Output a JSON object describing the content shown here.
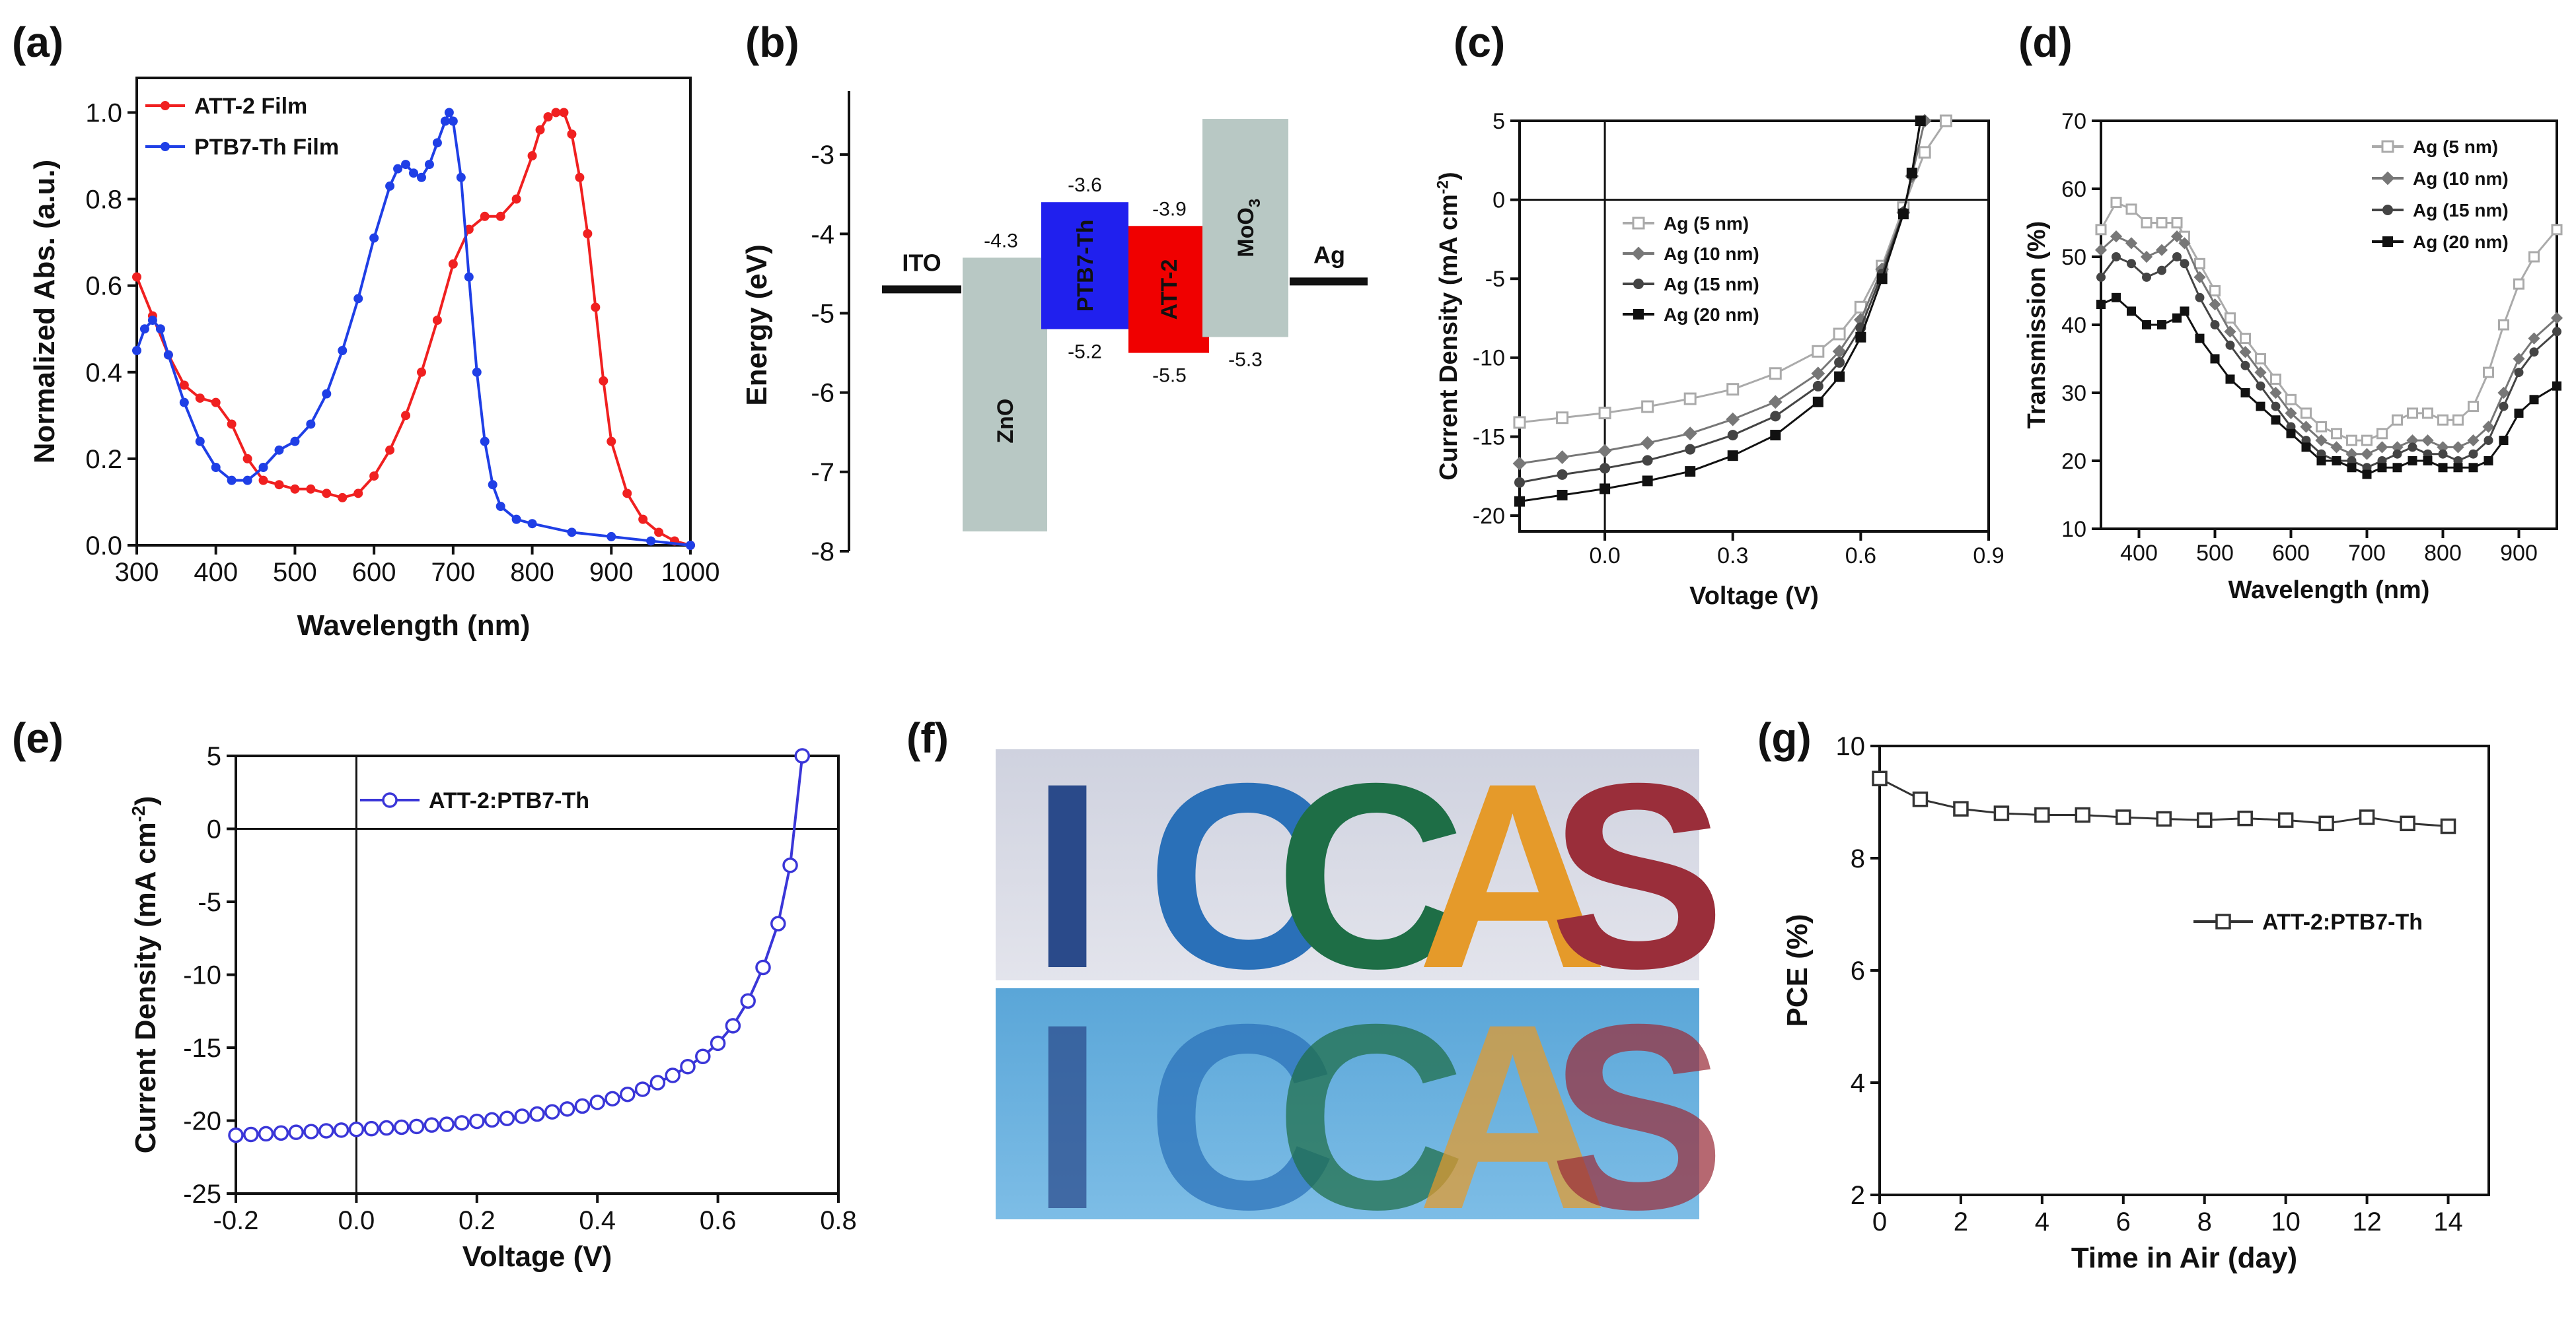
{
  "panel_labels": {
    "a": "(a)",
    "b": "(b)",
    "c": "(c)",
    "d": "(d)",
    "e": "(e)",
    "f": "(f)",
    "g": "(g)"
  },
  "colors": {
    "red": "#f02020",
    "blue": "#1f3fe6",
    "dark": "#1a1a1a",
    "grey": "#999999",
    "zno": "#b8c8c4",
    "moo3": "#b8c8c4",
    "ptb7": "#2020ee",
    "att2": "#f00000"
  },
  "panel_f": {
    "letters": [
      "I",
      "C",
      "C",
      "A",
      "S"
    ],
    "letter_colors": [
      "#2a4a8a",
      "#2a70b8",
      "#1e6e46",
      "#e59a2a",
      "#9a2e3a"
    ]
  },
  "chart_data": [
    {
      "id": "a",
      "type": "line",
      "title": "",
      "xlabel": "Wavelength (nm)",
      "ylabel": "Normalized Abs. (a.u.)",
      "xlim": [
        300,
        1000
      ],
      "ylim": [
        0,
        1.08
      ],
      "xticks": [
        300,
        400,
        500,
        600,
        700,
        800,
        900,
        1000
      ],
      "yticks": [
        0.0,
        0.2,
        0.4,
        0.6,
        0.8,
        1.0
      ],
      "ytick_labels": [
        "0.0",
        "0.2",
        "0.4",
        "0.6",
        "0.8",
        "1.0"
      ],
      "legend": "top-left",
      "series": [
        {
          "name": "ATT-2 Film",
          "color": "#f02020",
          "x": [
            300,
            320,
            340,
            360,
            380,
            400,
            420,
            440,
            460,
            480,
            500,
            520,
            540,
            560,
            580,
            600,
            620,
            640,
            660,
            680,
            700,
            720,
            740,
            760,
            780,
            800,
            810,
            820,
            830,
            840,
            850,
            860,
            870,
            880,
            890,
            900,
            920,
            940,
            960,
            980,
            1000
          ],
          "y": [
            0.62,
            0.53,
            0.44,
            0.37,
            0.34,
            0.33,
            0.28,
            0.2,
            0.15,
            0.14,
            0.13,
            0.13,
            0.12,
            0.11,
            0.12,
            0.16,
            0.22,
            0.3,
            0.4,
            0.52,
            0.65,
            0.73,
            0.76,
            0.76,
            0.8,
            0.9,
            0.96,
            0.99,
            1.0,
            1.0,
            0.95,
            0.85,
            0.72,
            0.55,
            0.38,
            0.24,
            0.12,
            0.06,
            0.03,
            0.01,
            0.0
          ]
        },
        {
          "name": "PTB7-Th Film",
          "color": "#1f3fe6",
          "x": [
            300,
            310,
            320,
            330,
            340,
            360,
            380,
            400,
            420,
            440,
            460,
            480,
            500,
            520,
            540,
            560,
            580,
            600,
            620,
            630,
            640,
            650,
            660,
            670,
            680,
            690,
            695,
            700,
            710,
            720,
            730,
            740,
            750,
            760,
            780,
            800,
            850,
            900,
            950,
            1000
          ],
          "y": [
            0.45,
            0.5,
            0.52,
            0.5,
            0.44,
            0.33,
            0.24,
            0.18,
            0.15,
            0.15,
            0.18,
            0.22,
            0.24,
            0.28,
            0.35,
            0.45,
            0.57,
            0.71,
            0.83,
            0.87,
            0.88,
            0.86,
            0.85,
            0.88,
            0.93,
            0.98,
            1.0,
            0.98,
            0.85,
            0.62,
            0.4,
            0.24,
            0.14,
            0.09,
            0.06,
            0.05,
            0.03,
            0.02,
            0.01,
            0.0
          ]
        }
      ]
    },
    {
      "id": "b",
      "type": "bar",
      "title": "",
      "ylabel": "Energy (eV)",
      "ylim": [
        -8,
        -2.3
      ],
      "yticks": [
        -3,
        -4,
        -5,
        -6,
        -7,
        -8
      ],
      "ytick_labels": [
        "-3",
        "-4",
        "-5",
        "-6",
        "-7",
        "-8"
      ],
      "levels": [
        {
          "name": "ITO",
          "value": -4.7,
          "label": "ITO"
        },
        {
          "name": "ZnO",
          "top": -4.3,
          "bottom": -7.75,
          "top_label": "-4.3",
          "label": "ZnO"
        },
        {
          "name": "PTB7-Th",
          "top": -3.6,
          "bottom": -5.2,
          "top_label": "-3.6",
          "bottom_label": "-5.2",
          "label": "PTB7-Th"
        },
        {
          "name": "ATT-2",
          "top": -3.9,
          "bottom": -5.5,
          "top_label": "-3.9",
          "bottom_label": "-5.5",
          "label": "ATT-2"
        },
        {
          "name": "MoO3",
          "top": -2.55,
          "bottom": -5.3,
          "bottom_label": "-5.3",
          "label": "MoO",
          "sub": "3"
        },
        {
          "name": "Ag",
          "value": -4.6,
          "label": "Ag"
        }
      ]
    },
    {
      "id": "c",
      "type": "line",
      "title": "",
      "xlabel": "Voltage (V)",
      "ylabel": "Current Density (mA cm",
      "ylabel_sup": "-2",
      "ylabel_end": ")",
      "xlim": [
        -0.2,
        0.9
      ],
      "ylim": [
        -21,
        5
      ],
      "xticks": [
        0.0,
        0.3,
        0.6,
        0.9
      ],
      "xtick_labels": [
        "0.0",
        "0.3",
        "0.6",
        "0.9"
      ],
      "yticks": [
        5,
        0,
        -5,
        -10,
        -15,
        -20
      ],
      "ytick_labels": [
        "5",
        "0",
        "-5",
        "-10",
        "-15",
        "-20"
      ],
      "legend": "center-left",
      "series": [
        {
          "name": "Ag (5 nm)",
          "color": "#aaaaaa",
          "marker": "open-square",
          "jsc": -13.9,
          "voc": 0.7,
          "x": [
            -0.2,
            -0.1,
            0.0,
            0.1,
            0.2,
            0.3,
            0.4,
            0.5,
            0.55,
            0.6,
            0.65,
            0.7,
            0.75,
            0.8
          ],
          "y": [
            -14.1,
            -13.8,
            -13.5,
            -13.1,
            -12.6,
            -12.0,
            -11.0,
            -9.6,
            -8.5,
            -6.8,
            -4.2,
            -0.5,
            3.0,
            5.0
          ]
        },
        {
          "name": "Ag (10 nm)",
          "color": "#777777",
          "marker": "diamond",
          "jsc": -16.6,
          "voc": 0.71,
          "x": [
            -0.2,
            -0.1,
            0.0,
            0.1,
            0.2,
            0.3,
            0.4,
            0.5,
            0.55,
            0.6,
            0.65,
            0.7,
            0.72,
            0.75
          ],
          "y": [
            -16.7,
            -16.3,
            -15.9,
            -15.4,
            -14.8,
            -13.9,
            -12.8,
            -11.0,
            -9.6,
            -7.6,
            -4.4,
            -0.8,
            1.5,
            5.0
          ]
        },
        {
          "name": "Ag (15 nm)",
          "color": "#444444",
          "marker": "circle",
          "jsc": -17.8,
          "voc": 0.71,
          "x": [
            -0.2,
            -0.1,
            0.0,
            0.1,
            0.2,
            0.3,
            0.4,
            0.5,
            0.55,
            0.6,
            0.65,
            0.7,
            0.72,
            0.74
          ],
          "y": [
            -17.9,
            -17.4,
            -17.0,
            -16.5,
            -15.8,
            -14.9,
            -13.7,
            -11.8,
            -10.3,
            -8.1,
            -4.7,
            -0.8,
            1.6,
            5.0
          ]
        },
        {
          "name": "Ag (20 nm)",
          "color": "#111111",
          "marker": "square",
          "jsc": -19.2,
          "voc": 0.71,
          "x": [
            -0.2,
            -0.1,
            0.0,
            0.1,
            0.2,
            0.3,
            0.4,
            0.5,
            0.55,
            0.6,
            0.65,
            0.7,
            0.72,
            0.74
          ],
          "y": [
            -19.1,
            -18.7,
            -18.3,
            -17.8,
            -17.2,
            -16.2,
            -14.9,
            -12.8,
            -11.2,
            -8.7,
            -5.0,
            -0.9,
            1.7,
            5.0
          ]
        }
      ]
    },
    {
      "id": "d",
      "type": "line",
      "title": "",
      "xlabel": "Wavelength (nm)",
      "ylabel": "Transmission (%)",
      "xlim": [
        350,
        950
      ],
      "ylim": [
        10,
        70
      ],
      "xticks": [
        400,
        500,
        600,
        700,
        800,
        900
      ],
      "yticks": [
        10,
        20,
        30,
        40,
        50,
        60,
        70
      ],
      "legend": "top-right",
      "series": [
        {
          "name": "Ag (5 nm)",
          "color": "#aaaaaa",
          "marker": "open-square",
          "x": [
            350,
            370,
            390,
            410,
            430,
            450,
            460,
            480,
            500,
            520,
            540,
            560,
            580,
            600,
            620,
            640,
            660,
            680,
            700,
            720,
            740,
            760,
            780,
            800,
            820,
            840,
            860,
            880,
            900,
            920,
            950
          ],
          "y": [
            54,
            58,
            57,
            55,
            55,
            55,
            53,
            49,
            45,
            41,
            38,
            35,
            32,
            29,
            27,
            25,
            24,
            23,
            23,
            24,
            26,
            27,
            27,
            26,
            26,
            28,
            33,
            40,
            46,
            50,
            54
          ]
        },
        {
          "name": "Ag (10 nm)",
          "color": "#777777",
          "marker": "diamond",
          "x": [
            350,
            370,
            390,
            410,
            430,
            450,
            460,
            480,
            500,
            520,
            540,
            560,
            580,
            600,
            620,
            640,
            660,
            680,
            700,
            720,
            740,
            760,
            780,
            800,
            820,
            840,
            860,
            880,
            900,
            920,
            950
          ],
          "y": [
            51,
            53,
            52,
            50,
            51,
            53,
            52,
            47,
            43,
            39,
            36,
            33,
            30,
            27,
            25,
            23,
            22,
            21,
            21,
            22,
            22,
            23,
            23,
            22,
            22,
            23,
            25,
            30,
            35,
            38,
            41
          ]
        },
        {
          "name": "Ag (15 nm)",
          "color": "#444444",
          "marker": "circle",
          "x": [
            350,
            370,
            390,
            410,
            430,
            450,
            460,
            480,
            500,
            520,
            540,
            560,
            580,
            600,
            620,
            640,
            660,
            680,
            700,
            720,
            740,
            760,
            780,
            800,
            820,
            840,
            860,
            880,
            900,
            920,
            950
          ],
          "y": [
            47,
            50,
            49,
            47,
            48,
            50,
            49,
            44,
            40,
            37,
            34,
            31,
            28,
            25,
            23,
            21,
            20,
            20,
            19,
            20,
            21,
            22,
            21,
            21,
            20,
            21,
            23,
            28,
            33,
            36,
            39
          ]
        },
        {
          "name": "Ag (20 nm)",
          "color": "#111111",
          "marker": "square",
          "x": [
            350,
            370,
            390,
            410,
            430,
            450,
            460,
            480,
            500,
            520,
            540,
            560,
            580,
            600,
            620,
            640,
            660,
            680,
            700,
            720,
            740,
            760,
            780,
            800,
            820,
            840,
            860,
            880,
            900,
            920,
            950
          ],
          "y": [
            43,
            44,
            42,
            40,
            40,
            41,
            42,
            38,
            35,
            32,
            30,
            28,
            26,
            24,
            22,
            20,
            20,
            19,
            18,
            19,
            19,
            20,
            20,
            19,
            19,
            19,
            20,
            23,
            27,
            29,
            31
          ]
        }
      ]
    },
    {
      "id": "e",
      "type": "line",
      "title": "",
      "xlabel": "Voltage (V)",
      "ylabel": "Current Density (mA cm",
      "ylabel_sup": "-2",
      "ylabel_end": ")",
      "xlim": [
        -0.2,
        0.8
      ],
      "ylim": [
        -25,
        5
      ],
      "xticks": [
        -0.2,
        0.0,
        0.2,
        0.4,
        0.6,
        0.8
      ],
      "xtick_labels": [
        "-0.2",
        "0.0",
        "0.2",
        "0.4",
        "0.6",
        "0.8"
      ],
      "yticks": [
        5,
        0,
        -5,
        -10,
        -15,
        -20,
        -25
      ],
      "ytick_labels": [
        "5",
        "0",
        "-5",
        "-10",
        "-15",
        "-20",
        "-25"
      ],
      "legend": "top-left",
      "series": [
        {
          "name": "ATT-2:PTB7-Th",
          "color": "#3a36d8",
          "marker": "open-circle",
          "x": [
            -0.2,
            -0.175,
            -0.15,
            -0.125,
            -0.1,
            -0.075,
            -0.05,
            -0.025,
            0.0,
            0.025,
            0.05,
            0.075,
            0.1,
            0.125,
            0.15,
            0.175,
            0.2,
            0.225,
            0.25,
            0.275,
            0.3,
            0.325,
            0.35,
            0.375,
            0.4,
            0.425,
            0.45,
            0.475,
            0.5,
            0.525,
            0.55,
            0.575,
            0.6,
            0.625,
            0.65,
            0.675,
            0.7,
            0.72,
            0.74
          ],
          "y": [
            -21.0,
            -20.95,
            -20.9,
            -20.85,
            -20.8,
            -20.75,
            -20.7,
            -20.65,
            -20.6,
            -20.55,
            -20.5,
            -20.45,
            -20.4,
            -20.3,
            -20.25,
            -20.15,
            -20.05,
            -19.95,
            -19.85,
            -19.7,
            -19.55,
            -19.4,
            -19.2,
            -19.0,
            -18.75,
            -18.5,
            -18.2,
            -17.85,
            -17.4,
            -16.9,
            -16.3,
            -15.6,
            -14.7,
            -13.5,
            -11.8,
            -9.5,
            -6.5,
            -2.5,
            5.0
          ]
        }
      ]
    },
    {
      "id": "g",
      "type": "line",
      "title": "",
      "xlabel": "Time in Air (day)",
      "ylabel": "PCE (%)",
      "xlim": [
        0,
        15
      ],
      "ylim": [
        2,
        10
      ],
      "xticks": [
        0,
        2,
        4,
        6,
        8,
        10,
        12,
        14
      ],
      "yticks": [
        2,
        4,
        6,
        8,
        10
      ],
      "legend": "center-right",
      "series": [
        {
          "name": "ATT-2:PTB7-Th",
          "color": "#333333",
          "marker": "open-square",
          "x": [
            0,
            1,
            2,
            3,
            4,
            5,
            6,
            7,
            8,
            9,
            10,
            11,
            12,
            13,
            14
          ],
          "y": [
            9.42,
            9.05,
            8.88,
            8.8,
            8.77,
            8.77,
            8.73,
            8.7,
            8.68,
            8.71,
            8.68,
            8.62,
            8.73,
            8.62,
            8.57
          ]
        }
      ]
    }
  ]
}
